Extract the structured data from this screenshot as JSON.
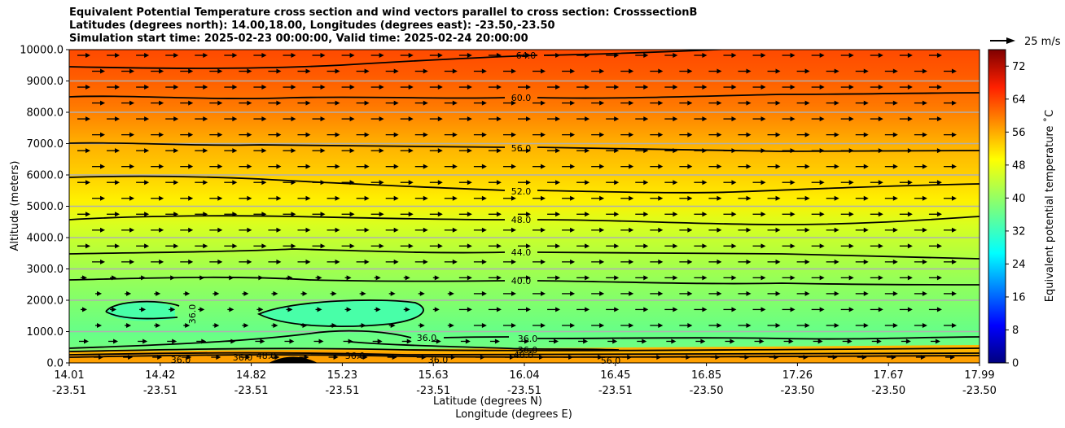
{
  "title_lines": [
    "Equivalent Potential Temperature cross section and wind vectors parallel to cross section: CrosssectionB",
    "Latitudes (degrees north): 14.00,18.00, Longitudes (degrees east): -23.50,-23.50",
    "Simulation start time: 2025-02-23 00:00:00, Valid time: 2025-02-24 20:00:00"
  ],
  "chart_data": {
    "type": "heatmap",
    "ylabel": "Altitude (meters)",
    "xlabel_lines": [
      "Latitude (degrees N)",
      "Longitude (degrees E)"
    ],
    "ylim": [
      0,
      10000
    ],
    "y_ticks": [
      "0.0",
      "1000.0",
      "2000.0",
      "3000.0",
      "4000.0",
      "5000.0",
      "6000.0",
      "7000.0",
      "8000.0",
      "9000.0",
      "10000.0"
    ],
    "x_ticks": [
      {
        "lat": "14.01",
        "lon": "-23.51"
      },
      {
        "lat": "14.42",
        "lon": "-23.51"
      },
      {
        "lat": "14.82",
        "lon": "-23.51"
      },
      {
        "lat": "15.23",
        "lon": "-23.51"
      },
      {
        "lat": "15.63",
        "lon": "-23.51"
      },
      {
        "lat": "16.04",
        "lon": "-23.51"
      },
      {
        "lat": "16.45",
        "lon": "-23.51"
      },
      {
        "lat": "16.85",
        "lon": "-23.50"
      },
      {
        "lat": "17.26",
        "lon": "-23.50"
      },
      {
        "lat": "17.67",
        "lon": "-23.50"
      },
      {
        "lat": "17.99",
        "lon": "-23.50"
      }
    ],
    "grid": "horizontal",
    "colorbar": {
      "label": "Equivalent potential temperature $^\\circ$C",
      "label_text": "Equivalent potential temperature ˚C",
      "range": [
        0,
        76
      ],
      "ticks": [
        "0",
        "8",
        "16",
        "24",
        "32",
        "40",
        "48",
        "56",
        "64",
        "72"
      ]
    },
    "quiver_key": {
      "label": "25 m/s"
    },
    "contour_levels": [
      {
        "label": "64.0",
        "altitude": 9500
      },
      {
        "label": "60.0",
        "altitude": 8500
      },
      {
        "label": "56.0",
        "altitude": 6900
      },
      {
        "label": "52.0",
        "altitude": 5550
      },
      {
        "label": "48.0",
        "altitude": 4650
      },
      {
        "label": "44.0",
        "altitude": 3550
      },
      {
        "label": "40.0",
        "altitude": 2550
      },
      {
        "label": "36.0",
        "altitude": 750
      }
    ],
    "contour_labels_visible": [
      "64.0",
      "60.0",
      "56.0",
      "52.0",
      "48.0",
      "44.0",
      "40.0",
      "36.0",
      "36.0",
      "36.0",
      "36.0",
      "36.0",
      "36.0",
      "48.0",
      "36.0",
      "40.0",
      "56.0",
      "36.0"
    ],
    "colors": {
      "high": "#e84a00",
      "mid_high": "#ffb000",
      "mid": "#ffea00",
      "mid_low": "#b8ff3a",
      "low": "#66ff88",
      "lowest_core": "#44ffaa",
      "surface": "#ffb400"
    }
  }
}
